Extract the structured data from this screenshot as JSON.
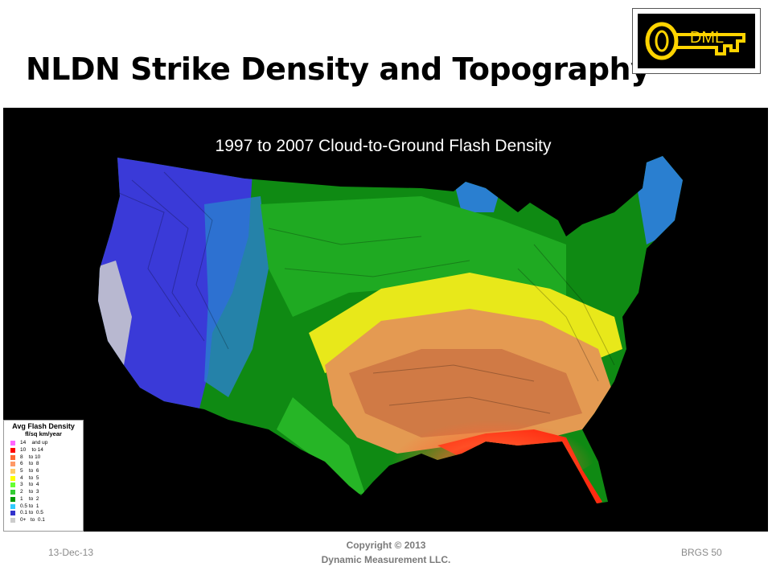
{
  "slide": {
    "title": "NLDN Strike Density and Topography",
    "logo_text": "DML",
    "footer_date": "13-Dec-13",
    "footer_copyright_line1": "Copyright © 2013",
    "footer_copyright_line2": "Dynamic Measurement LLC.",
    "footer_slide_label": "BRGS  50"
  },
  "map": {
    "title": "1997 to 2007 Cloud-to-Ground Flash Density",
    "legend": {
      "title": "Avg Flash Density",
      "unit": "fl/sq km/year",
      "items": [
        {
          "range": "14    and up",
          "color": "#ff66ff"
        },
        {
          "range": "10    to 14",
          "color": "#ff0000"
        },
        {
          "range": "8    to 10",
          "color": "#ff6633"
        },
        {
          "range": "6    to  8",
          "color": "#ff9966"
        },
        {
          "range": "5    to  6",
          "color": "#ffcc66"
        },
        {
          "range": "4    to  5",
          "color": "#ffff00"
        },
        {
          "range": "3    to  4",
          "color": "#66ff33"
        },
        {
          "range": "2    to  3",
          "color": "#33cc33"
        },
        {
          "range": "1    to  2",
          "color": "#009900"
        },
        {
          "range": "0.5 to  1",
          "color": "#33ccff"
        },
        {
          "range": "0.1 to  0.5",
          "color": "#3333cc"
        },
        {
          "range": "0+   to  0.1",
          "color": "#cccccc"
        }
      ]
    }
  }
}
